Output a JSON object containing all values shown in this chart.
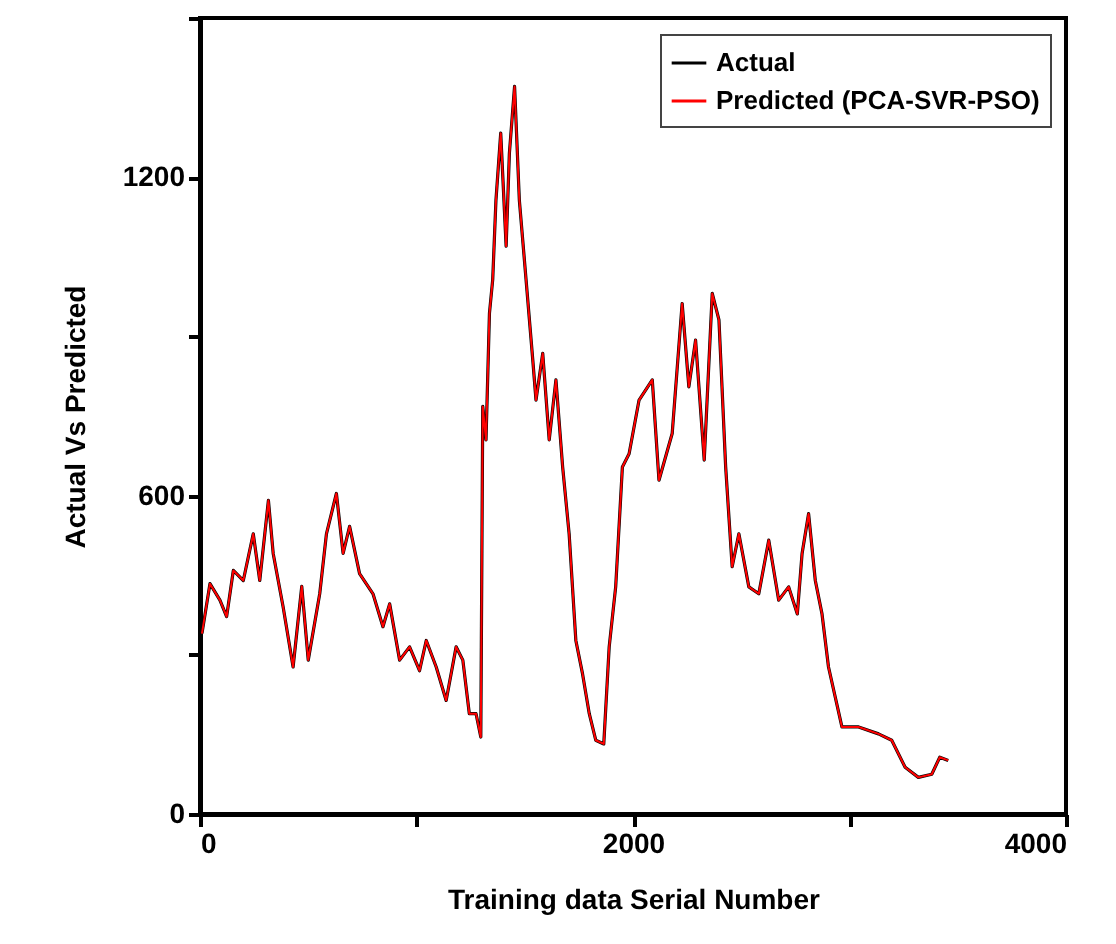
{
  "chart_data": {
    "type": "line",
    "xlabel": "Training data Serial Number",
    "ylabel": "Actual Vs Predicted",
    "x": [
      9,
      46,
      92,
      123,
      154,
      200,
      246,
      276,
      316,
      338,
      384,
      430,
      470,
      500,
      553,
      584,
      630,
      661,
      691,
      737,
      799,
      845,
      876,
      922,
      968,
      1014,
      1045,
      1091,
      1137,
      1183,
      1214,
      1244,
      1275,
      1297,
      1306,
      1321,
      1337,
      1352,
      1367,
      1389,
      1414,
      1429,
      1453,
      1475,
      1506,
      1537,
      1552,
      1583,
      1613,
      1644,
      1675,
      1705,
      1736,
      1767,
      1798,
      1828,
      1865,
      1890,
      1920,
      1951,
      1982,
      2028,
      2089,
      2120,
      2181,
      2227,
      2258,
      2289,
      2329,
      2366,
      2397,
      2428,
      2458,
      2489,
      2535,
      2581,
      2627,
      2673,
      2719,
      2759,
      2781,
      2811,
      2842,
      2873,
      2903,
      2965,
      3042,
      3134,
      3195,
      3257,
      3318,
      3380,
      3417,
      3456
    ],
    "series": [
      {
        "name": "Actual",
        "color": "#000000",
        "values": [
          340,
          434,
          403,
          372,
          459,
          440,
          528,
          440,
          591,
          491,
          390,
          277,
          429,
          290,
          415,
          528,
          604,
          491,
          542,
          453,
          415,
          353,
          396,
          290,
          315,
          270,
          327,
          277,
          214,
          315,
          290,
          189,
          189,
          145,
          768,
          705,
          944,
          1007,
          1157,
          1283,
          1070,
          1245,
          1371,
          1157,
          1007,
          856,
          780,
          868,
          705,
          818,
          654,
          528,
          327,
          264,
          189,
          139,
          132,
          315,
          428,
          654,
          679,
          780,
          818,
          629,
          717,
          962,
          805,
          893,
          667,
          981,
          931,
          654,
          466,
          528,
          428,
          415,
          516,
          403,
          428,
          377,
          491,
          566,
          440,
          377,
          277,
          164,
          164,
          151,
          139,
          88,
          69,
          75,
          107,
          101
        ]
      },
      {
        "name": "Predicted (PCA-SVR-PSO)",
        "color": "#ff0000",
        "values": [
          340,
          434,
          403,
          372,
          459,
          440,
          528,
          440,
          591,
          491,
          390,
          277,
          429,
          290,
          415,
          528,
          604,
          491,
          542,
          453,
          415,
          353,
          396,
          290,
          315,
          270,
          327,
          277,
          214,
          315,
          290,
          189,
          189,
          145,
          768,
          705,
          944,
          1007,
          1157,
          1283,
          1070,
          1245,
          1371,
          1157,
          1007,
          856,
          780,
          868,
          705,
          818,
          654,
          528,
          327,
          264,
          189,
          139,
          132,
          315,
          428,
          654,
          679,
          780,
          818,
          629,
          717,
          962,
          805,
          893,
          667,
          981,
          931,
          654,
          466,
          528,
          428,
          415,
          516,
          403,
          428,
          377,
          491,
          566,
          440,
          377,
          277,
          164,
          164,
          151,
          139,
          88,
          69,
          75,
          107,
          101
        ]
      }
    ],
    "xlim": [
      0,
      4000
    ],
    "xticks": [
      0,
      {
        "value": 1000,
        "label": null
      },
      2000,
      {
        "value": 3000,
        "label": null
      },
      4000
    ],
    "ylim": [
      0,
      1500
    ],
    "yticks": [
      0,
      {
        "value": 300,
        "label": null
      },
      600,
      {
        "value": 900,
        "label": null
      },
      1200,
      {
        "value": 1500,
        "label": null
      }
    ],
    "legend": "top right"
  }
}
